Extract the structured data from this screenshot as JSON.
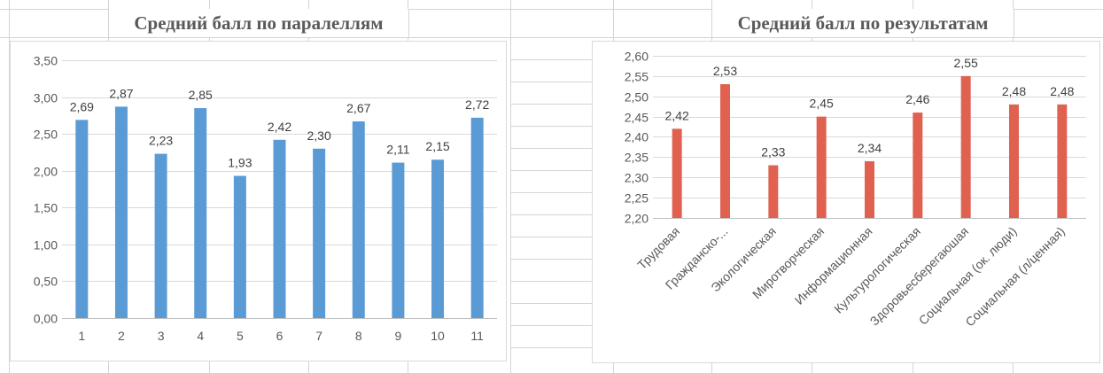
{
  "chart_data": [
    {
      "type": "bar",
      "title": "Средний балл по паралеллям",
      "categories": [
        "1",
        "2",
        "3",
        "4",
        "5",
        "6",
        "7",
        "8",
        "9",
        "10",
        "11"
      ],
      "values": [
        2.69,
        2.87,
        2.23,
        2.85,
        1.93,
        2.42,
        2.3,
        2.67,
        2.11,
        2.15,
        2.72
      ],
      "data_labels": [
        "2,69",
        "2,87",
        "2,23",
        "2,85",
        "1,93",
        "2,42",
        "2,30",
        "2,67",
        "2,11",
        "2,15",
        "2,72"
      ],
      "yticks": [
        "0,00",
        "0,50",
        "1,00",
        "1,50",
        "2,00",
        "2,50",
        "3,00",
        "3,50"
      ],
      "ylim": [
        0,
        3.5
      ],
      "grid": true,
      "legend": "none",
      "color": "#5b9bd5"
    },
    {
      "type": "bar",
      "title": "Средний балл по результатам",
      "categories": [
        "Трудовая",
        "Гражданско-...",
        "Экологическая",
        "Миротворческая",
        "Информационная",
        "Культурологическая",
        "Здоровьесберегаюшая",
        "Социальная (ок. люди)",
        "Социальная (л/ценная)"
      ],
      "values": [
        2.42,
        2.53,
        2.33,
        2.45,
        2.34,
        2.46,
        2.55,
        2.48,
        2.48
      ],
      "data_labels": [
        "2,42",
        "2,53",
        "2,33",
        "2,45",
        "2,34",
        "2,46",
        "2,55",
        "2,48",
        "2,48"
      ],
      "yticks": [
        "2,20",
        "2,25",
        "2,30",
        "2,35",
        "2,40",
        "2,45",
        "2,50",
        "2,55",
        "2,60"
      ],
      "ylim": [
        2.2,
        2.6
      ],
      "grid": true,
      "legend": "none",
      "color": "#e06150"
    }
  ]
}
